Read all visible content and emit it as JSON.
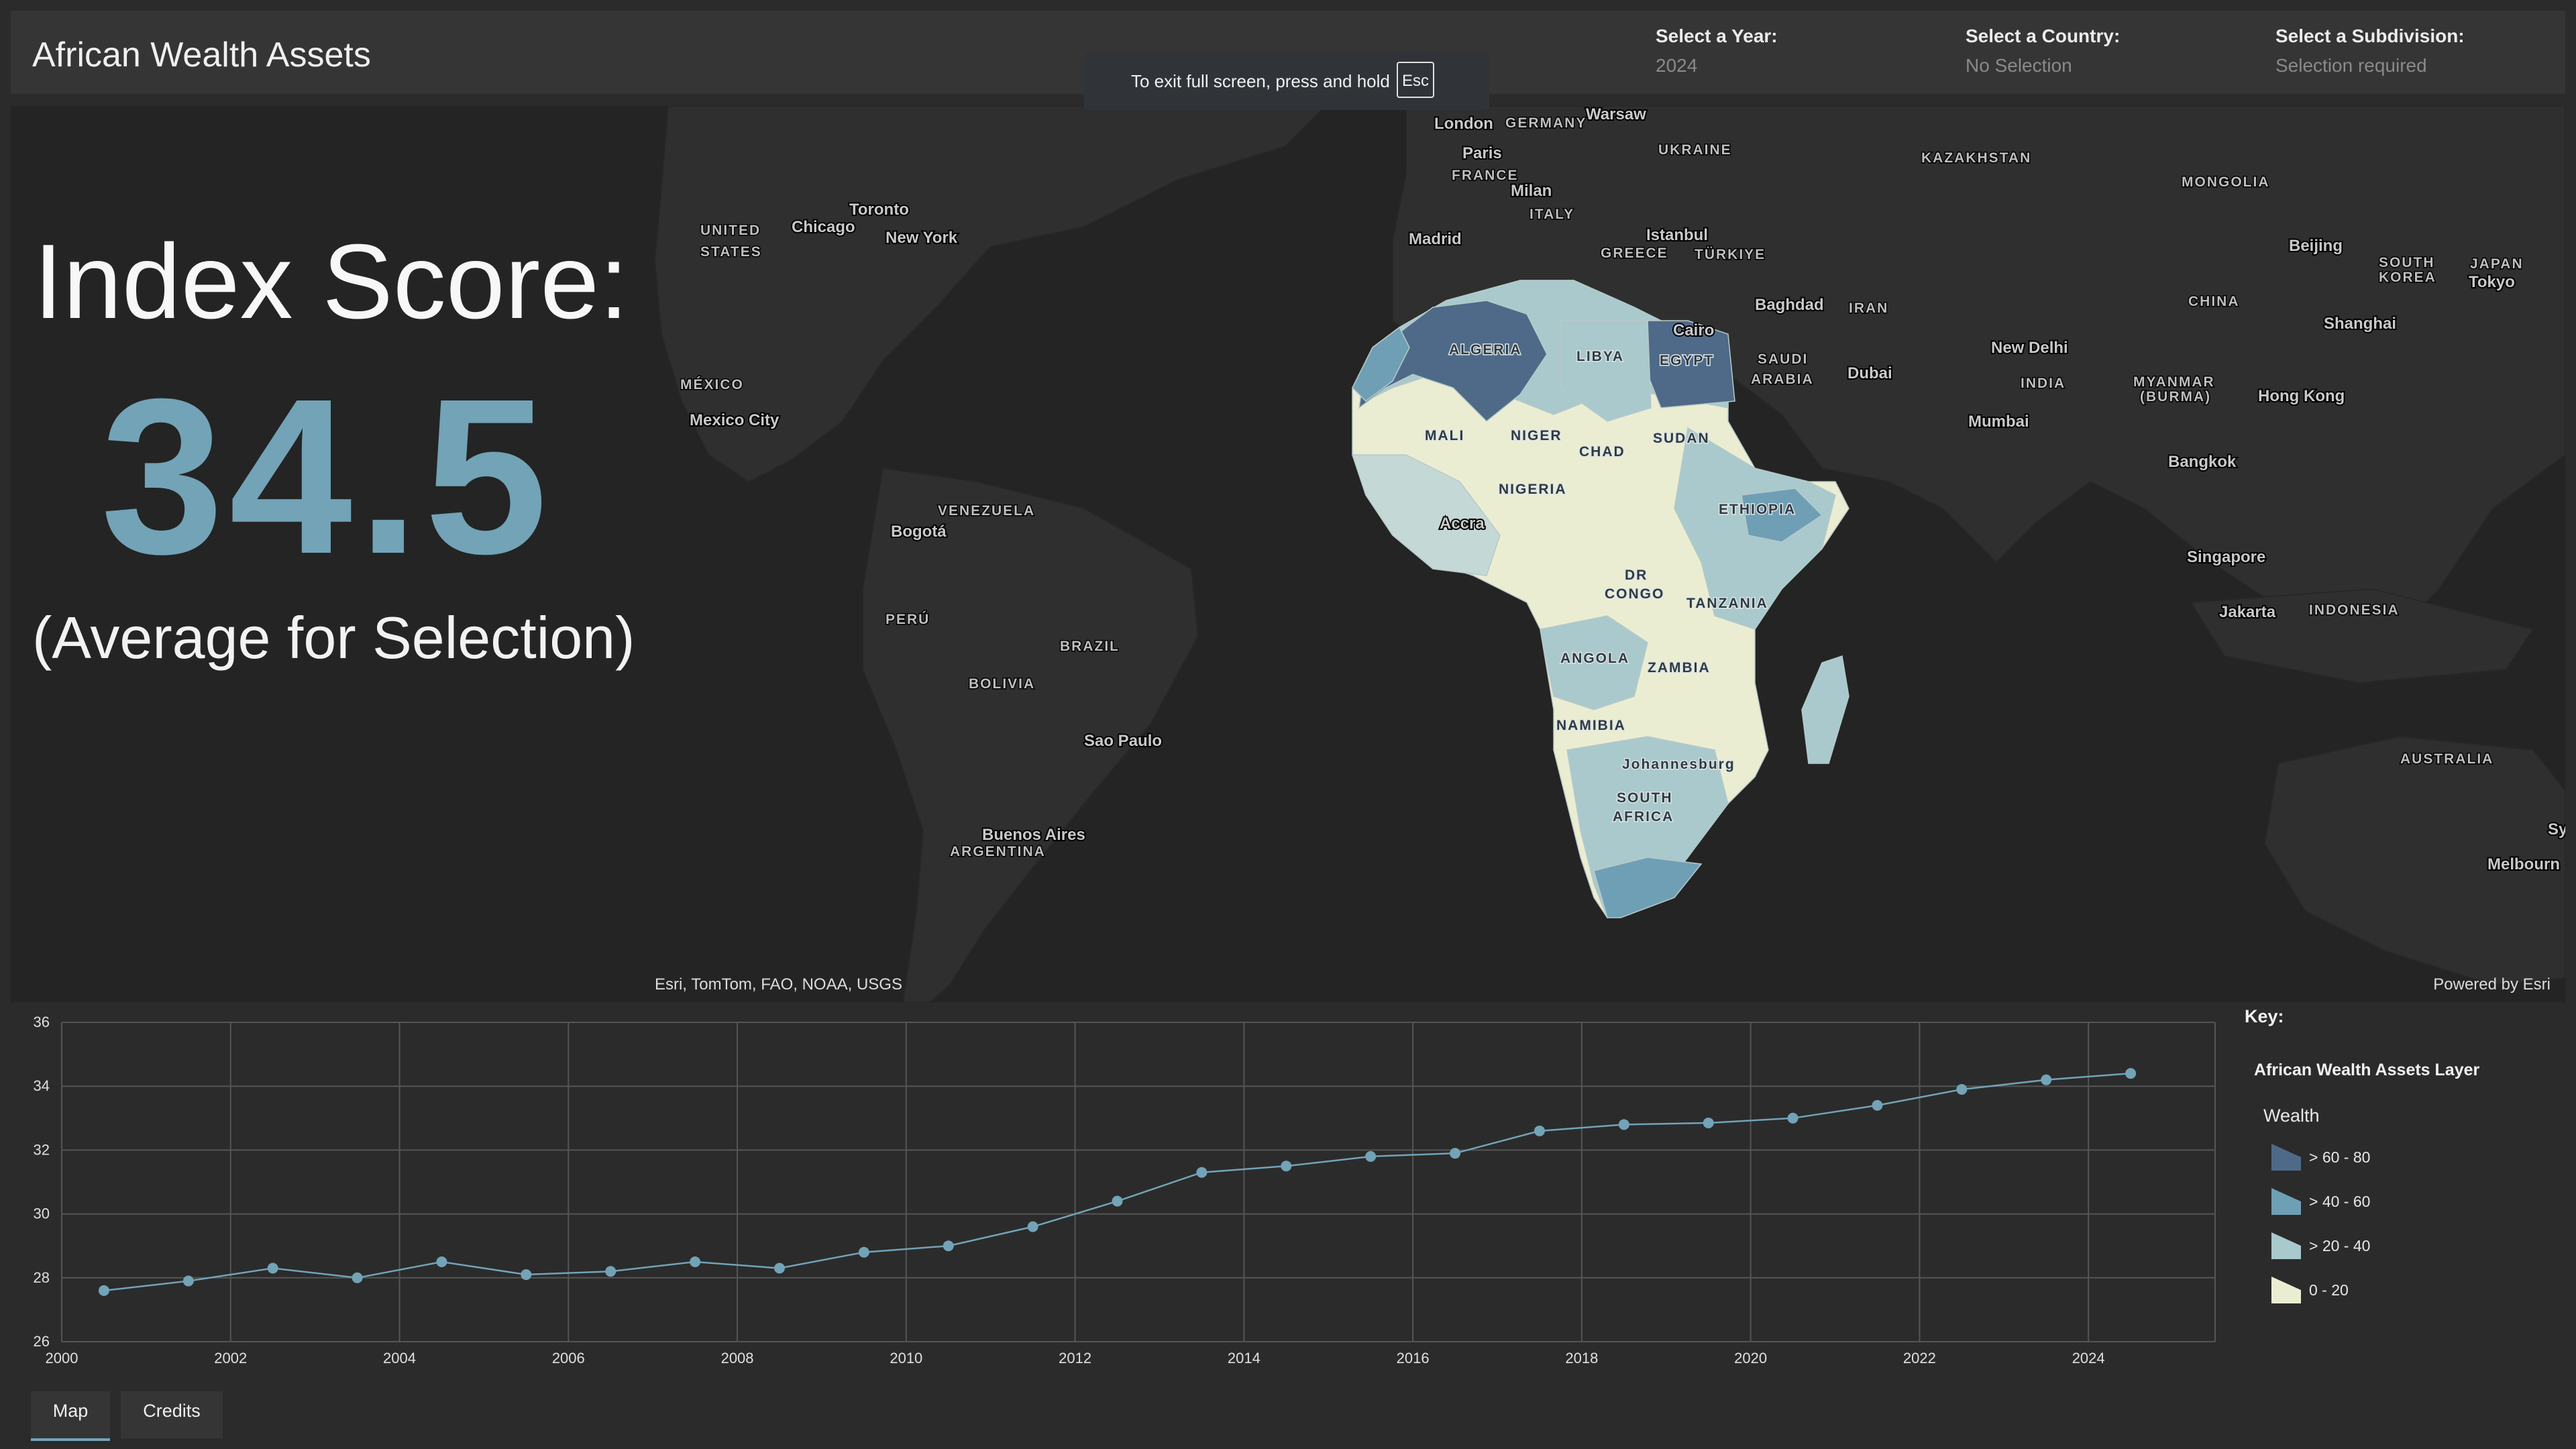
{
  "header": {
    "title": "African Wealth Assets",
    "selectors": [
      {
        "label": "Select a Year:",
        "value": "2024"
      },
      {
        "label": "Select a Country:",
        "value": "No Selection"
      },
      {
        "label": "Select a Subdivision:",
        "value": "Selection required"
      }
    ]
  },
  "fullscreen_notice": {
    "text": "To exit full screen, press and hold",
    "key": "Esc"
  },
  "score": {
    "title": "Index Score:",
    "value": "34.5",
    "subtitle": "(Average for Selection)"
  },
  "map": {
    "attribution": "Esri, TomTom, FAO, NOAA, USGS",
    "powered_by": "Powered by Esri",
    "labels": {
      "london": "London",
      "germany": "GERMANY",
      "warsaw": "Warsaw",
      "ukraine": "UKRAINE",
      "kazakhstan": "KAZAKHSTAN",
      "mongolia": "MONGOLIA",
      "paris": "Paris",
      "france": "FRANCE",
      "milan": "Milan",
      "italy": "ITALY",
      "madrid": "Madrid",
      "istanbul": "Istanbul",
      "greece": "GREECE",
      "turkiye": "TÜRKIYE",
      "beijing": "Beijing",
      "toronto": "Toronto",
      "chicago": "Chicago",
      "united": "UNITED",
      "states": "STATES",
      "new_york": "New York",
      "baghdad": "Baghdad",
      "iran": "IRAN",
      "china": "CHINA",
      "south": "SOUTH",
      "korea": "KOREA",
      "japan": "JAPAN",
      "tokyo": "Tokyo",
      "shanghai": "Shanghai",
      "cairo": "Cairo",
      "egypt": "EGYPT",
      "saudi": "SAUDI",
      "arabia": "ARABIA",
      "dubai": "Dubai",
      "new_delhi": "New Delhi",
      "india": "INDIA",
      "myanmar": "MYANMAR",
      "burma": "(BURMA)",
      "hong_kong": "Hong Kong",
      "mumbai": "Mumbai",
      "mexico": "MÉXICO",
      "mexico_city": "Mexico City",
      "venezuela": "VENEZUELA",
      "bogota": "Bogotá",
      "peru": "PERÚ",
      "brazil": "BRAZIL",
      "bolivia": "BOLIVIA",
      "sao_paulo": "Sao Paulo",
      "buenos_aires": "Buenos Aires",
      "argentina": "ARGENTINA",
      "bangkok": "Bangkok",
      "singapore": "Singapore",
      "jakarta": "Jakarta",
      "indonesia": "INDONESIA",
      "australia": "AUSTRALIA",
      "sydney": "Sy",
      "melbourne": "Melbourn",
      "algeria": "ALGERIA",
      "libya": "LIBYA",
      "mali": "MALI",
      "niger": "NIGER",
      "chad": "CHAD",
      "sudan": "SUDAN",
      "nigeria": "NIGERIA",
      "ethiopia": "ETHIOPIA",
      "accra": "Accra",
      "dr": "DR",
      "congo": "CONGO",
      "tanzania": "TANZANIA",
      "angola": "ANGOLA",
      "zambia": "ZAMBIA",
      "namibia": "NAMIBIA",
      "johannesburg": "Johannesburg",
      "south_africa_1": "SOUTH",
      "south_africa_2": "AFRICA"
    }
  },
  "chart_data": {
    "type": "line",
    "x": [
      2000.5,
      2001.5,
      2002.5,
      2003.5,
      2004.5,
      2005.5,
      2006.5,
      2007.5,
      2008.5,
      2009.5,
      2010.5,
      2011.5,
      2012.5,
      2013.5,
      2014.5,
      2015.5,
      2016.5,
      2017.5,
      2018.5,
      2019.5,
      2020.5,
      2021.5,
      2022.5,
      2023.5,
      2024.5
    ],
    "y": [
      27.6,
      27.9,
      28.3,
      28.0,
      28.5,
      28.1,
      28.2,
      28.5,
      28.3,
      28.8,
      29.0,
      29.6,
      30.4,
      31.3,
      31.5,
      31.8,
      31.9,
      32.6,
      32.8,
      32.85,
      33.0,
      33.4,
      33.9,
      34.2,
      34.4
    ],
    "xlim": [
      2000,
      2025.5
    ],
    "ylim": [
      26,
      36
    ],
    "xticks": [
      2000,
      2002,
      2004,
      2006,
      2008,
      2010,
      2012,
      2014,
      2016,
      2018,
      2020,
      2022,
      2024
    ],
    "yticks": [
      26,
      28,
      30,
      32,
      34,
      36
    ],
    "grid": true,
    "color": "#72a3b7"
  },
  "legend": {
    "title": "Key:",
    "layer": "African Wealth Assets Layer",
    "field": "Wealth",
    "items": [
      {
        "label": "> 60 - 80",
        "color": "#4e6a88"
      },
      {
        "label": "> 40 - 60",
        "color": "#6f9fb5"
      },
      {
        "label": "> 20 - 40",
        "color": "#a9c9cc"
      },
      {
        "label": "0 - 20",
        "color": "#ebedd2"
      }
    ]
  },
  "tabs": [
    {
      "label": "Map"
    },
    {
      "label": "Credits"
    }
  ]
}
